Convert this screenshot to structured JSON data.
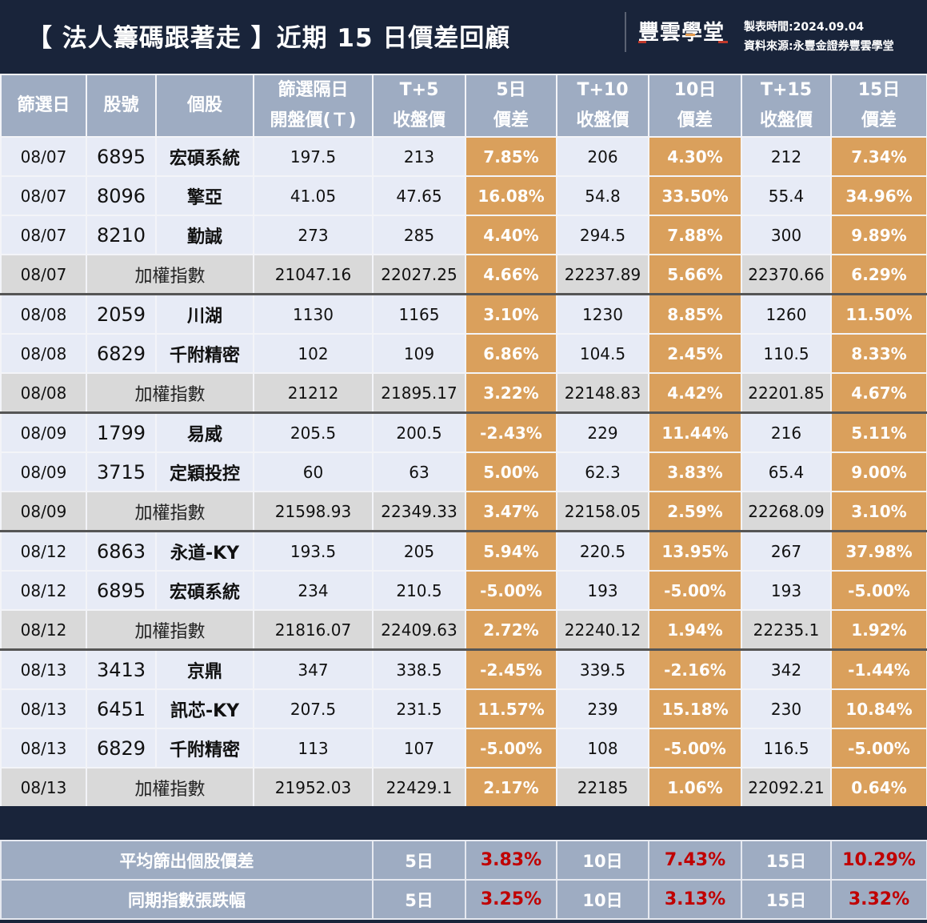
{
  "header": {
    "title": "【 法人籌碼跟著走 】近期 15 日價差回顧",
    "logo": "豐雲學堂",
    "made_time": "製表時間:2024.09.04",
    "source": "資料來源:永豐金證券豐雲學堂"
  },
  "colors": {
    "background": "#19243a",
    "header_cell": "#9eacc2",
    "stock_row": "#e7ebf6",
    "index_row": "#d9d9d9",
    "pct_cell": "#daa05c",
    "summary_value": "#c00000"
  },
  "columns": [
    {
      "l1": "篩選日",
      "l2": ""
    },
    {
      "l1": "股號",
      "l2": ""
    },
    {
      "l1": "個股",
      "l2": ""
    },
    {
      "l1": "篩選隔日",
      "l2": "開盤價(Ｔ)"
    },
    {
      "l1": "T+5",
      "l2": "收盤價"
    },
    {
      "l1": "5日",
      "l2": "價差"
    },
    {
      "l1": "T+10",
      "l2": "收盤價"
    },
    {
      "l1": "10日",
      "l2": "價差"
    },
    {
      "l1": "T+15",
      "l2": "收盤價"
    },
    {
      "l1": "15日",
      "l2": "價差"
    }
  ],
  "rows": [
    {
      "date": "08/07",
      "code": "6895",
      "name": "宏碩系統",
      "open": "197.5",
      "t5": "213",
      "d5": "7.85%",
      "t10": "206",
      "d10": "4.30%",
      "t15": "212",
      "d15": "7.34%"
    },
    {
      "date": "08/07",
      "code": "8096",
      "name": "擎亞",
      "open": "41.05",
      "t5": "47.65",
      "d5": "16.08%",
      "t10": "54.8",
      "d10": "33.50%",
      "t15": "55.4",
      "d15": "34.96%"
    },
    {
      "date": "08/07",
      "code": "8210",
      "name": "勤誠",
      "open": "273",
      "t5": "285",
      "d5": "4.40%",
      "t10": "294.5",
      "d10": "7.88%",
      "t15": "300",
      "d15": "9.89%"
    },
    {
      "date": "08/07",
      "name": "加權指數",
      "open": "21047.16",
      "t5": "22027.25",
      "d5": "4.66%",
      "t10": "22237.89",
      "d10": "5.66%",
      "t15": "22370.66",
      "d15": "6.29%"
    },
    {
      "date": "08/08",
      "code": "2059",
      "name": "川湖",
      "open": "1130",
      "t5": "1165",
      "d5": "3.10%",
      "t10": "1230",
      "d10": "8.85%",
      "t15": "1260",
      "d15": "11.50%"
    },
    {
      "date": "08/08",
      "code": "6829",
      "name": "千附精密",
      "open": "102",
      "t5": "109",
      "d5": "6.86%",
      "t10": "104.5",
      "d10": "2.45%",
      "t15": "110.5",
      "d15": "8.33%"
    },
    {
      "date": "08/08",
      "name": "加權指數",
      "open": "21212",
      "t5": "21895.17",
      "d5": "3.22%",
      "t10": "22148.83",
      "d10": "4.42%",
      "t15": "22201.85",
      "d15": "4.67%"
    },
    {
      "date": "08/09",
      "code": "1799",
      "name": "易威",
      "open": "205.5",
      "t5": "200.5",
      "d5": "-2.43%",
      "t10": "229",
      "d10": "11.44%",
      "t15": "216",
      "d15": "5.11%"
    },
    {
      "date": "08/09",
      "code": "3715",
      "name": "定穎投控",
      "open": "60",
      "t5": "63",
      "d5": "5.00%",
      "t10": "62.3",
      "d10": "3.83%",
      "t15": "65.4",
      "d15": "9.00%"
    },
    {
      "date": "08/09",
      "name": "加權指數",
      "open": "21598.93",
      "t5": "22349.33",
      "d5": "3.47%",
      "t10": "22158.05",
      "d10": "2.59%",
      "t15": "22268.09",
      "d15": "3.10%"
    },
    {
      "date": "08/12",
      "code": "6863",
      "name": "永道-KY",
      "open": "193.5",
      "t5": "205",
      "d5": "5.94%",
      "t10": "220.5",
      "d10": "13.95%",
      "t15": "267",
      "d15": "37.98%"
    },
    {
      "date": "08/12",
      "code": "6895",
      "name": "宏碩系統",
      "open": "234",
      "t5": "210.5",
      "d5": "-5.00%",
      "t10": "193",
      "d10": "-5.00%",
      "t15": "193",
      "d15": "-5.00%"
    },
    {
      "date": "08/12",
      "name": "加權指數",
      "open": "21816.07",
      "t5": "22409.63",
      "d5": "2.72%",
      "t10": "22240.12",
      "d10": "1.94%",
      "t15": "22235.1",
      "d15": "1.92%"
    },
    {
      "date": "08/13",
      "code": "3413",
      "name": "京鼎",
      "open": "347",
      "t5": "338.5",
      "d5": "-2.45%",
      "t10": "339.5",
      "d10": "-2.16%",
      "t15": "342",
      "d15": "-1.44%"
    },
    {
      "date": "08/13",
      "code": "6451",
      "name": "訊芯-KY",
      "open": "207.5",
      "t5": "231.5",
      "d5": "11.57%",
      "t10": "239",
      "d10": "15.18%",
      "t15": "230",
      "d15": "10.84%"
    },
    {
      "date": "08/13",
      "code": "6829",
      "name": "千附精密",
      "open": "113",
      "t5": "107",
      "d5": "-5.00%",
      "t10": "108",
      "d10": "-5.00%",
      "t15": "116.5",
      "d15": "-5.00%"
    },
    {
      "date": "08/13",
      "name": "加權指數",
      "open": "21952.03",
      "t5": "22429.1",
      "d5": "2.17%",
      "t10": "22185",
      "d10": "1.06%",
      "t15": "22092.21",
      "d15": "0.64%"
    }
  ],
  "summary": [
    {
      "label": "平均篩出個股價差",
      "p5_label": "5日",
      "p5": "3.83%",
      "p10_label": "10日",
      "p10": "7.43%",
      "p15_label": "15日",
      "p15": "10.29%"
    },
    {
      "label": "同期指數張跌幅",
      "p5_label": "5日",
      "p5": "3.25%",
      "p10_label": "10日",
      "p10": "3.13%",
      "p15_label": "15日",
      "p15": "3.32%"
    }
  ]
}
